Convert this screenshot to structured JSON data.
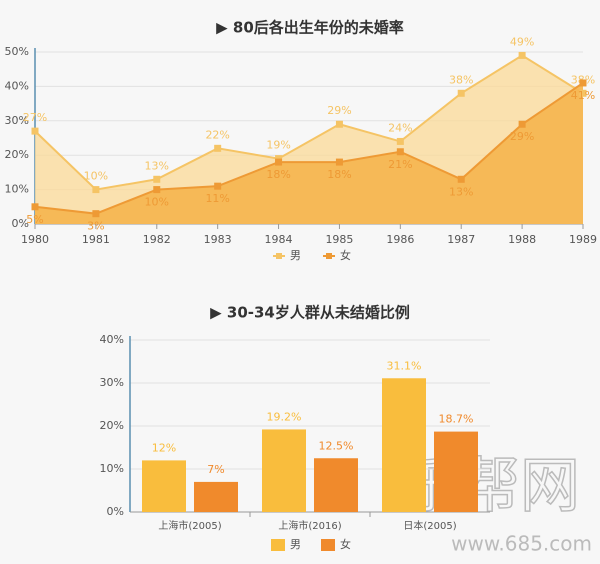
{
  "chart_data": [
    {
      "type": "area",
      "title": "▶ 80后各出生年份的未婚率",
      "categories": [
        "1980",
        "1981",
        "1982",
        "1983",
        "1984",
        "1985",
        "1986",
        "1987",
        "1988",
        "1989"
      ],
      "series": [
        {
          "name": "男",
          "color": "#f5c465",
          "fill": "#fadb9c",
          "values": [
            27,
            10,
            13,
            22,
            19,
            29,
            24,
            38,
            49,
            38
          ],
          "value_labels": [
            "27%",
            "10%",
            "13%",
            "22%",
            "19%",
            "29%",
            "24%",
            "38%",
            "49%",
            "38%"
          ]
        },
        {
          "name": "女",
          "color": "#ee9a35",
          "fill": "#f6b652",
          "values": [
            5,
            3,
            10,
            11,
            18,
            18,
            21,
            13,
            29,
            41
          ],
          "value_labels": [
            "5%",
            "3%",
            "10%",
            "11%",
            "18%",
            "18%",
            "21%",
            "13%",
            "29%",
            "41%"
          ]
        }
      ],
      "ylim": [
        0,
        50
      ],
      "yticks": [
        {
          "value": 0,
          "label": "0%"
        },
        {
          "value": 10,
          "label": "10%"
        },
        {
          "value": 20,
          "label": "20%"
        },
        {
          "value": 30,
          "label": "30%"
        },
        {
          "value": 40,
          "label": "40%"
        },
        {
          "value": 50,
          "label": "50%"
        }
      ]
    },
    {
      "type": "bar",
      "title": "▶ 30-34岁人群从未结婚比例",
      "categories": [
        "上海市(2005)",
        "上海市(2016)",
        "日本(2005)"
      ],
      "series": [
        {
          "name": "男",
          "color": "#f9bd3d",
          "values": [
            12,
            19.2,
            31.1
          ],
          "value_labels": [
            "12%",
            "19.2%",
            "31.1%"
          ]
        },
        {
          "name": "女",
          "color": "#f08a2c",
          "values": [
            7,
            12.5,
            18.7
          ],
          "value_labels": [
            "7%",
            "12.5%",
            "18.7%"
          ]
        }
      ],
      "ylim": [
        0,
        40
      ],
      "yticks": [
        {
          "value": 0,
          "label": "0%"
        },
        {
          "value": 10,
          "label": "10%"
        },
        {
          "value": 20,
          "label": "20%"
        },
        {
          "value": 30,
          "label": "30%"
        },
        {
          "value": 40,
          "label": "40%"
        }
      ]
    }
  ],
  "watermark": {
    "text": "乐帮网",
    "url": "www.685.com"
  }
}
